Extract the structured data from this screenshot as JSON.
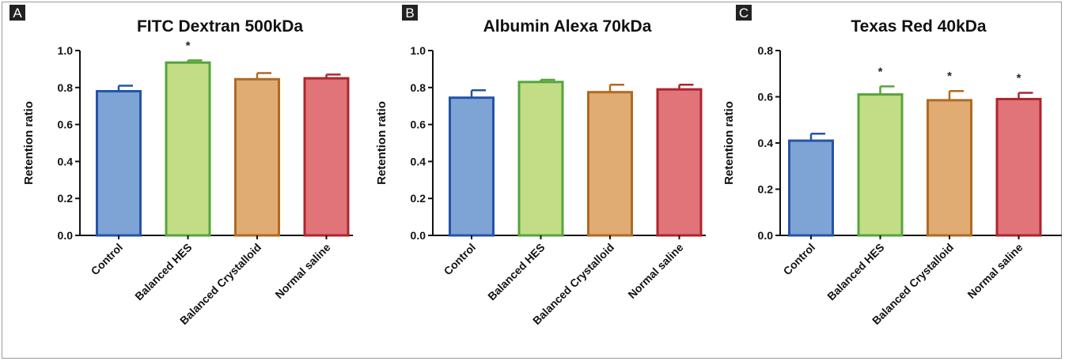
{
  "chart_data": [
    {
      "type": "bar",
      "panel_label": "A",
      "title": "FITC Dextran 500kDa",
      "ylabel": "Retention ratio",
      "ylim": [
        0,
        1.0
      ],
      "yticks": [
        "0.0",
        "0.2",
        "0.4",
        "0.6",
        "0.8",
        "1.0"
      ],
      "categories": [
        "Control",
        "Balanced HES",
        "Balanced Crystalloid",
        "Normal saline"
      ],
      "values": [
        0.78,
        0.935,
        0.845,
        0.85
      ],
      "errors": [
        0.03,
        0.012,
        0.033,
        0.02
      ],
      "significance": [
        "",
        "*",
        "",
        ""
      ]
    },
    {
      "type": "bar",
      "panel_label": "B",
      "title": "Albumin Alexa 70kDa",
      "ylabel": "Retention ratio",
      "ylim": [
        0,
        1.0
      ],
      "yticks": [
        "0.0",
        "0.2",
        "0.4",
        "0.6",
        "0.8",
        "1.0"
      ],
      "categories": [
        "Control",
        "Balanced HES",
        "Balanced Crystalloid",
        "Normal saline"
      ],
      "values": [
        0.745,
        0.83,
        0.775,
        0.79
      ],
      "errors": [
        0.04,
        0.012,
        0.04,
        0.025
      ],
      "significance": [
        "",
        "",
        "",
        ""
      ]
    },
    {
      "type": "bar",
      "panel_label": "C",
      "title": "Texas Red 40kDa",
      "ylabel": "Retention ratio",
      "ylim": [
        0,
        0.8
      ],
      "yticks": [
        "0.0",
        "0.2",
        "0.4",
        "0.6",
        "0.8"
      ],
      "categories": [
        "Control",
        "Balanced HES",
        "Balanced Crystalloid",
        "Normal saline"
      ],
      "values": [
        0.41,
        0.61,
        0.585,
        0.59
      ],
      "errors": [
        0.03,
        0.035,
        0.04,
        0.027
      ],
      "significance": [
        "",
        "*",
        "*",
        "*"
      ]
    }
  ],
  "colors": {
    "fills": [
      "#7ea4d6",
      "#c2dd85",
      "#e0ac73",
      "#e07479"
    ],
    "strokes": [
      "#2454a8",
      "#55a53b",
      "#b06a22",
      "#b0242c"
    ],
    "panel_label_bg": "#222222"
  }
}
